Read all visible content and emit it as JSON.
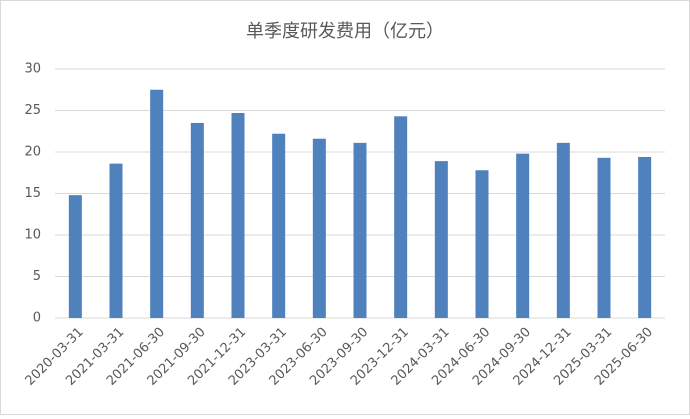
{
  "chart_data": {
    "type": "bar",
    "title": "单季度研发费用（亿元）",
    "categories": [
      "2020-03-31",
      "2021-03-31",
      "2021-06-30",
      "2021-09-30",
      "2021-12-31",
      "2023-03-31",
      "2023-06-30",
      "2023-09-30",
      "2023-12-31",
      "2024-03-31",
      "2024-06-30",
      "2024-09-30",
      "2024-12-31",
      "2025-03-31",
      "2025-06-30"
    ],
    "values": [
      14.8,
      18.6,
      27.5,
      23.5,
      24.7,
      22.2,
      21.6,
      21.1,
      24.3,
      18.9,
      17.8,
      19.8,
      21.1,
      19.3,
      19.4
    ],
    "color": "#4f81bd",
    "ylim": [
      0,
      30
    ],
    "yticks": [
      0,
      5,
      10,
      15,
      20,
      25,
      30
    ],
    "grid": true
  }
}
